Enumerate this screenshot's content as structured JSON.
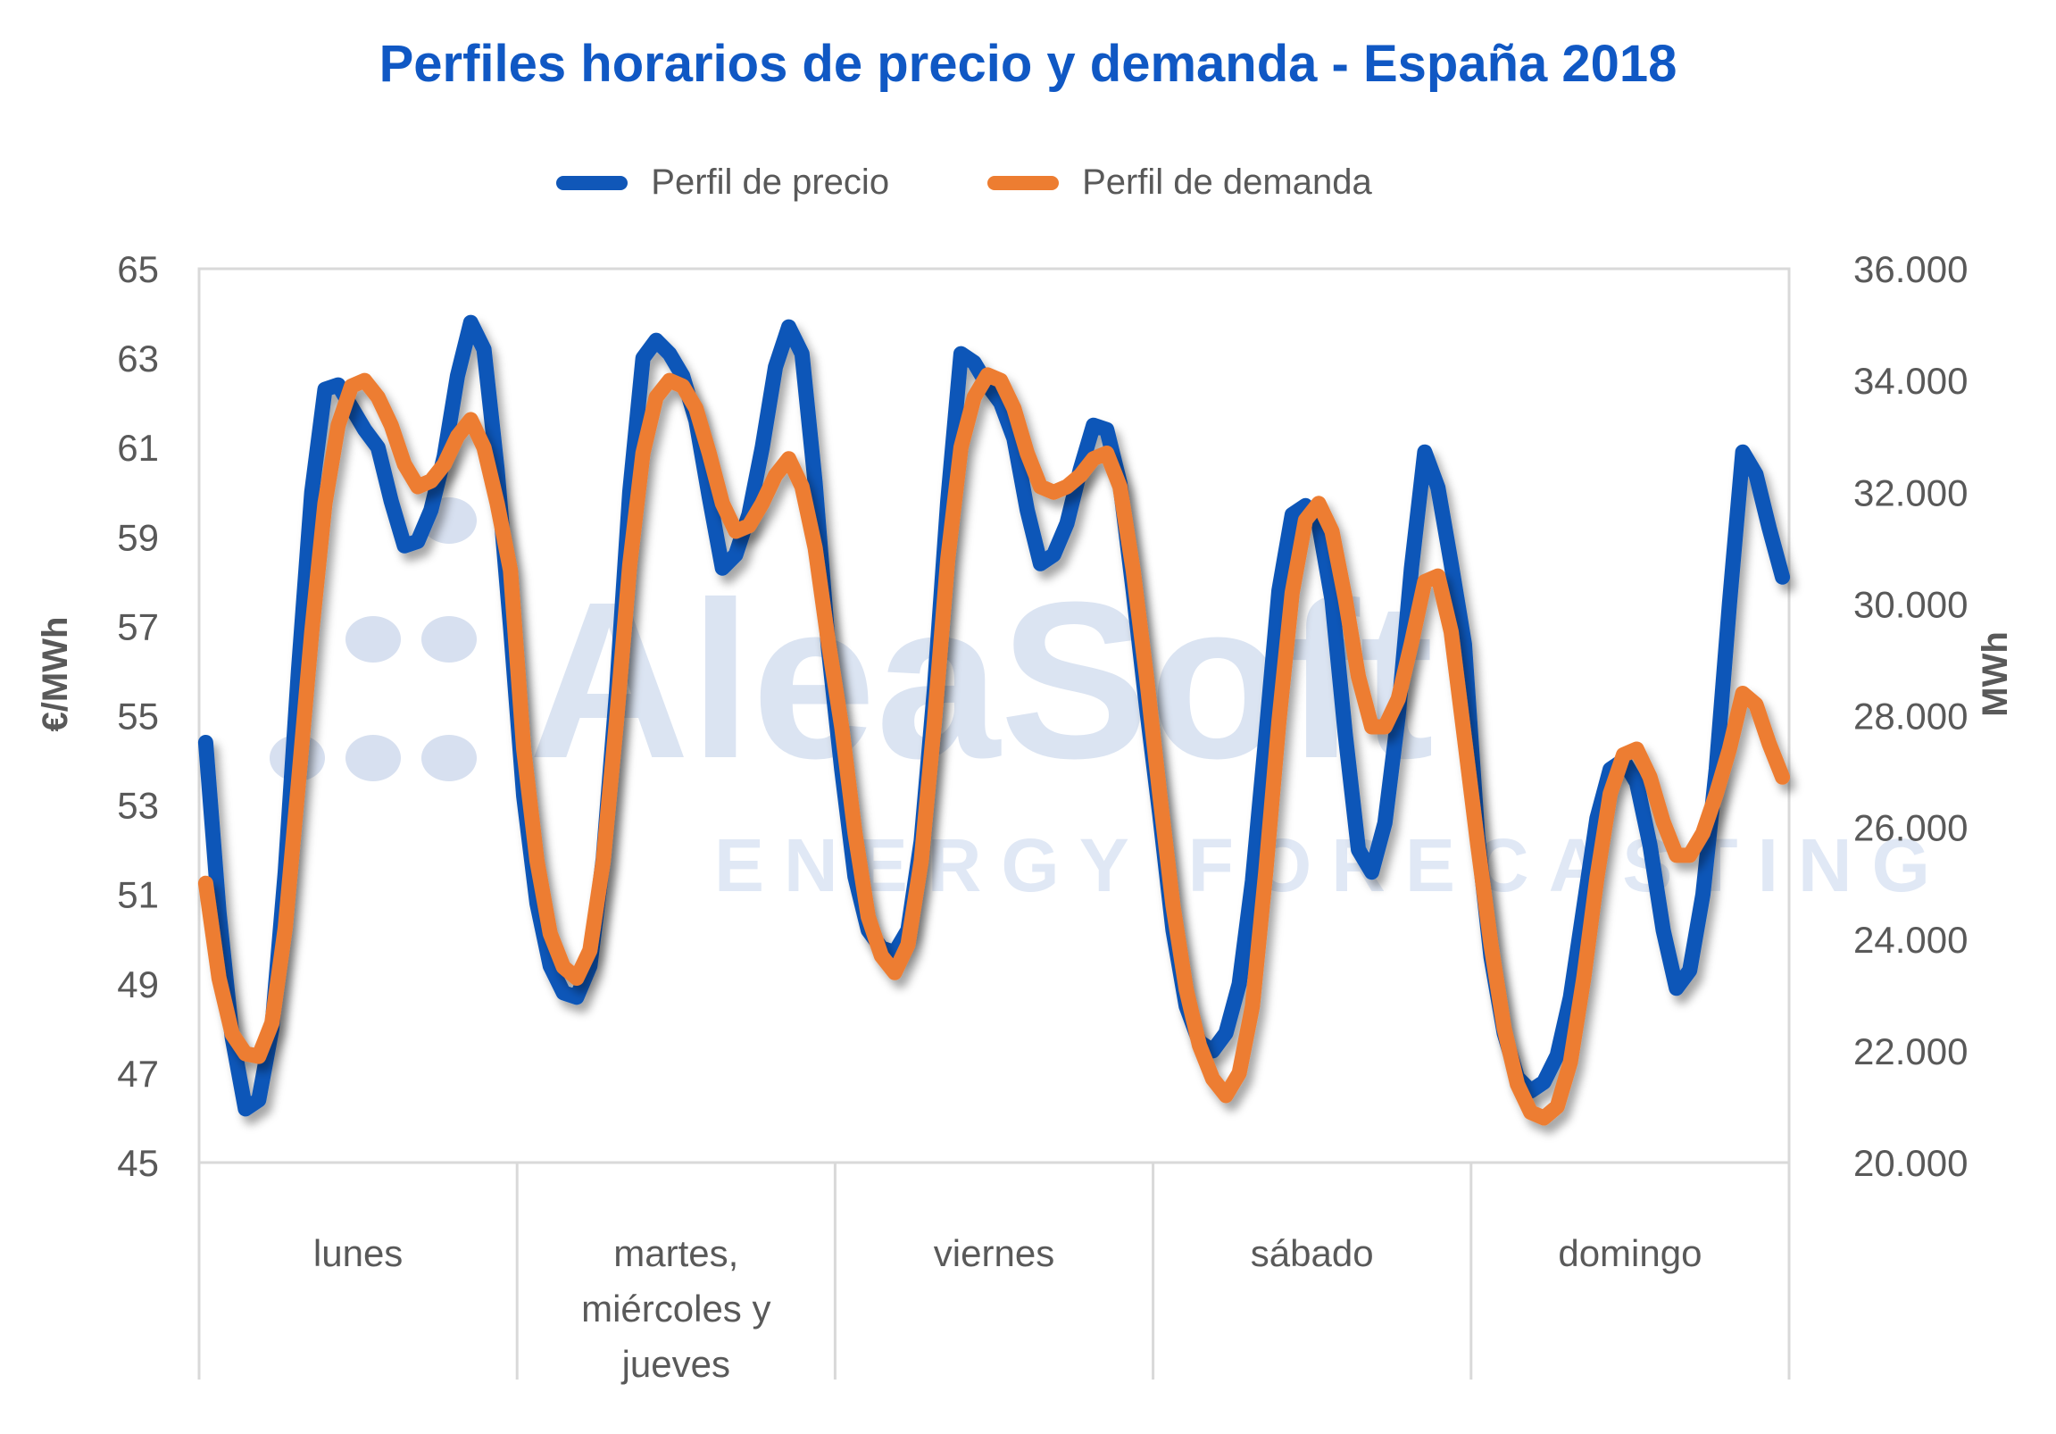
{
  "title": "Perfiles horarios de precio y demanda - España 2018",
  "legend": {
    "items": [
      {
        "label": "Perfil de precio",
        "color": "#1057B8"
      },
      {
        "label": "Perfil de demanda",
        "color": "#ED7D31"
      }
    ]
  },
  "watermark": {
    "brand": "AleaSoft",
    "tagline": "ENERGY FORECASTING"
  },
  "chart_data": {
    "type": "line",
    "title": "Perfiles horarios de precio y demanda - España 2018",
    "categories": [
      "lunes",
      "martes,\nmiércoles y\njueves",
      "viernes",
      "sábado",
      "domingo"
    ],
    "points_per_category": 24,
    "grid": "off",
    "legend_position": "top",
    "y_left": {
      "title": "€/MWh",
      "min": 45,
      "max": 65,
      "ticks": [
        "65",
        "63",
        "61",
        "59",
        "57",
        "55",
        "53",
        "51",
        "49",
        "47",
        "45"
      ]
    },
    "y_right": {
      "title": "MWh",
      "min": 20000,
      "max": 36000,
      "ticks": [
        "36.000",
        "34.000",
        "32.000",
        "30.000",
        "28.000",
        "26.000",
        "24.000",
        "22.000",
        "20.000"
      ]
    },
    "series": [
      {
        "name": "Perfil de precio",
        "axis": "left",
        "color": "#1057B8",
        "unit": "€/MWh",
        "values": [
          [
            54.4,
            50.6,
            47.8,
            46.2,
            46.4,
            48.0,
            51.5,
            56.0,
            60.0,
            62.3,
            62.4,
            61.9,
            61.4,
            61.0,
            59.8,
            58.8,
            58.9,
            59.6,
            60.8,
            62.6,
            63.8,
            63.2,
            60.5,
            57.0
          ],
          [
            53.2,
            50.8,
            49.4,
            48.8,
            48.7,
            49.4,
            51.8,
            55.5,
            60.0,
            63.0,
            63.4,
            63.1,
            62.6,
            61.6,
            59.9,
            58.3,
            58.6,
            59.5,
            61.0,
            62.8,
            63.7,
            63.1,
            60.2,
            56.5
          ],
          [
            53.8,
            51.4,
            50.2,
            49.8,
            49.7,
            50.2,
            52.2,
            55.6,
            59.8,
            63.1,
            62.9,
            62.4,
            62.0,
            61.2,
            59.6,
            58.4,
            58.6,
            59.3,
            60.5,
            61.5,
            61.4,
            60.2,
            57.8,
            55.2
          ],
          [
            52.8,
            50.2,
            48.5,
            47.7,
            47.5,
            47.9,
            49.0,
            51.3,
            54.5,
            57.8,
            59.5,
            59.7,
            59.3,
            57.6,
            54.6,
            52.0,
            51.5,
            52.6,
            55.0,
            58.3,
            60.9,
            60.1,
            58.4,
            56.6
          ],
          [
            52.3,
            49.6,
            47.9,
            46.9,
            46.6,
            46.8,
            47.4,
            48.7,
            50.7,
            52.7,
            53.8,
            54.0,
            53.5,
            52.1,
            50.2,
            48.9,
            49.3,
            51.0,
            53.8,
            57.5,
            60.9,
            60.4,
            59.2,
            58.1
          ]
        ]
      },
      {
        "name": "Perfil de demanda",
        "axis": "right",
        "color": "#ED7D31",
        "unit": "MWh",
        "values": [
          [
            25000,
            23300,
            22300,
            21950,
            21900,
            22500,
            24200,
            26800,
            29500,
            31800,
            33200,
            33900,
            34000,
            33700,
            33200,
            32500,
            32100,
            32200,
            32500,
            33000,
            33300,
            32800,
            31800,
            30600
          ],
          [
            27400,
            25400,
            24100,
            23500,
            23300,
            23800,
            25400,
            27900,
            30700,
            32700,
            33700,
            34000,
            33900,
            33500,
            32700,
            31800,
            31300,
            31400,
            31800,
            32300,
            32600,
            32100,
            31000,
            29300
          ],
          [
            27800,
            25900,
            24400,
            23700,
            23400,
            23900,
            25400,
            27900,
            30800,
            32800,
            33700,
            34100,
            34000,
            33500,
            32700,
            32100,
            32000,
            32100,
            32300,
            32600,
            32700,
            32100,
            30600,
            28700
          ],
          [
            26600,
            24600,
            23100,
            22100,
            21500,
            21200,
            21600,
            22800,
            25200,
            27900,
            30200,
            31500,
            31800,
            31300,
            30100,
            28700,
            27800,
            27800,
            28300,
            29300,
            30400,
            30500,
            29500,
            27600
          ],
          [
            25700,
            23900,
            22400,
            21400,
            20900,
            20800,
            21000,
            21800,
            23300,
            25100,
            26600,
            27300,
            27400,
            26900,
            26100,
            25500,
            25500,
            25900,
            26600,
            27400,
            28400,
            28200,
            27500,
            26900
          ]
        ]
      }
    ]
  }
}
